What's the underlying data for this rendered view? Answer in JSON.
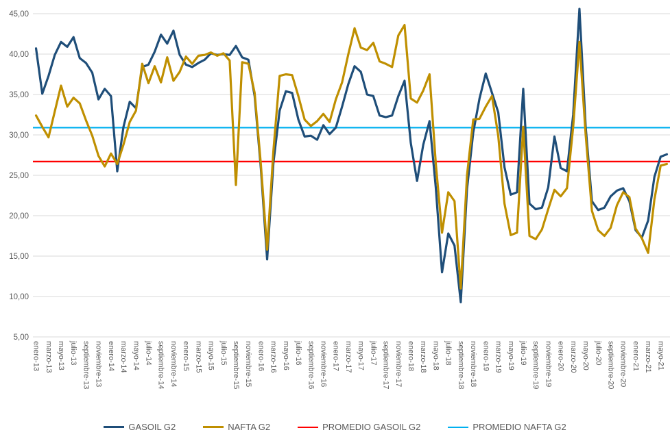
{
  "chart_data": {
    "type": "line",
    "title": "",
    "xlabel": "",
    "ylabel": "",
    "y_min": 5,
    "y_max": 45,
    "y_step": 5,
    "grid": "horizontal",
    "legend_position": "bottom",
    "y_tick_labels": [
      "45,00",
      "40,00",
      "35,00",
      "30,00",
      "25,00",
      "20,00",
      "15,00",
      "10,00",
      "5,00"
    ],
    "x_note": "monthly points ene-13 .. jun-21; axis shows a label every second month",
    "x_tick_labels": [
      "enero-13",
      "marzo-13",
      "mayo-13",
      "julio-13",
      "septiembre-13",
      "noviembre-13",
      "enero-14",
      "marzo-14",
      "mayo-14",
      "julio-14",
      "septiembre-14",
      "noviembre-14",
      "enero-15",
      "marzo-15",
      "mayo-15",
      "julio-15",
      "septiembre-15",
      "noviembre-15",
      "enero-16",
      "marzo-16",
      "mayo-16",
      "julio-16",
      "septiembre-16",
      "noviembre-16",
      "enero-17",
      "marzo-17",
      "mayo-17",
      "julio-17",
      "septiembre-17",
      "noviembre-17",
      "enero-18",
      "marzo-18",
      "mayo-18",
      "julio-18",
      "septiembre-18",
      "noviembre-18",
      "enero-19",
      "marzo-19",
      "mayo-19",
      "julio-19",
      "septiembre-19",
      "noviembre-19",
      "enero-20",
      "marzo-20",
      "mayo-20",
      "julio-20",
      "septiembre-20",
      "noviembre-20",
      "enero-21",
      "marzo-21",
      "mayo-21"
    ],
    "series": [
      {
        "name": "GASOIL G2",
        "color": "#1F4E79",
        "width": 3.2,
        "values": [
          40.7,
          35.1,
          37.3,
          39.9,
          41.5,
          40.9,
          42.1,
          39.5,
          38.9,
          37.7,
          34.4,
          35.7,
          34.8,
          25.5,
          31.0,
          34.1,
          33.3,
          38.4,
          38.7,
          40.3,
          42.4,
          41.3,
          42.9,
          39.9,
          38.7,
          38.4,
          38.9,
          39.3,
          40.1,
          39.9,
          40.0,
          39.9,
          41.0,
          39.6,
          39.3,
          34.8,
          25.8,
          14.6,
          26.5,
          33.0,
          35.4,
          35.2,
          31.9,
          29.8,
          29.9,
          29.4,
          31.2,
          30.1,
          30.9,
          33.5,
          36.3,
          38.5,
          37.8,
          35.0,
          34.8,
          32.4,
          32.2,
          32.4,
          34.8,
          36.7,
          29.0,
          24.3,
          28.8,
          31.7,
          23.5,
          13.0,
          17.8,
          16.3,
          9.3,
          23.3,
          30.3,
          34.5,
          37.6,
          35.2,
          32.8,
          26.0,
          22.6,
          22.9,
          35.7,
          21.5,
          20.8,
          21.0,
          23.5,
          29.8,
          25.9,
          25.5,
          32.5,
          45.6,
          31.0,
          21.8,
          20.7,
          21.0,
          22.4,
          23.1,
          23.4,
          21.8,
          18.2,
          17.3,
          19.4,
          24.8,
          27.3,
          27.6
        ]
      },
      {
        "name": "NAFTA G2",
        "color": "#BF8F00",
        "width": 3.2,
        "values": [
          32.4,
          31.0,
          29.7,
          32.9,
          36.1,
          33.5,
          34.6,
          33.9,
          31.8,
          29.9,
          27.4,
          26.1,
          27.7,
          26.4,
          28.8,
          31.6,
          33.0,
          38.8,
          36.4,
          38.5,
          36.5,
          39.6,
          36.7,
          37.8,
          39.7,
          38.8,
          39.8,
          39.9,
          40.2,
          39.8,
          40.1,
          39.2,
          23.8,
          39.0,
          38.8,
          35.2,
          26.3,
          15.8,
          28.0,
          37.3,
          37.5,
          37.4,
          34.8,
          31.9,
          31.1,
          31.7,
          32.6,
          31.6,
          34.4,
          36.5,
          40.0,
          43.2,
          40.8,
          40.5,
          41.4,
          39.1,
          38.8,
          38.4,
          42.3,
          43.6,
          34.5,
          34.0,
          35.5,
          37.5,
          26.5,
          17.9,
          22.9,
          21.8,
          11.0,
          25.0,
          31.9,
          32.0,
          33.5,
          34.8,
          29.9,
          21.5,
          17.6,
          17.9,
          31.0,
          17.5,
          17.1,
          18.3,
          20.8,
          23.2,
          22.4,
          23.4,
          31.0,
          41.5,
          30.0,
          20.6,
          18.2,
          17.5,
          18.5,
          21.3,
          22.9,
          22.3,
          18.4,
          17.2,
          15.4,
          22.0,
          26.2,
          26.4
        ]
      }
    ],
    "ref_lines": [
      {
        "name": "PROMEDIO GASOIL G2",
        "color": "#FF0000",
        "width": 2.3,
        "value": 26.7
      },
      {
        "name": "PROMEDIO NAFTA G2",
        "color": "#00B0F0",
        "width": 2.3,
        "value": 30.9
      }
    ],
    "colors": {
      "gridline": "#D9D9D9",
      "tick_text": "#595959",
      "legend_text": "#595959",
      "background": "#FFFFFF"
    }
  }
}
